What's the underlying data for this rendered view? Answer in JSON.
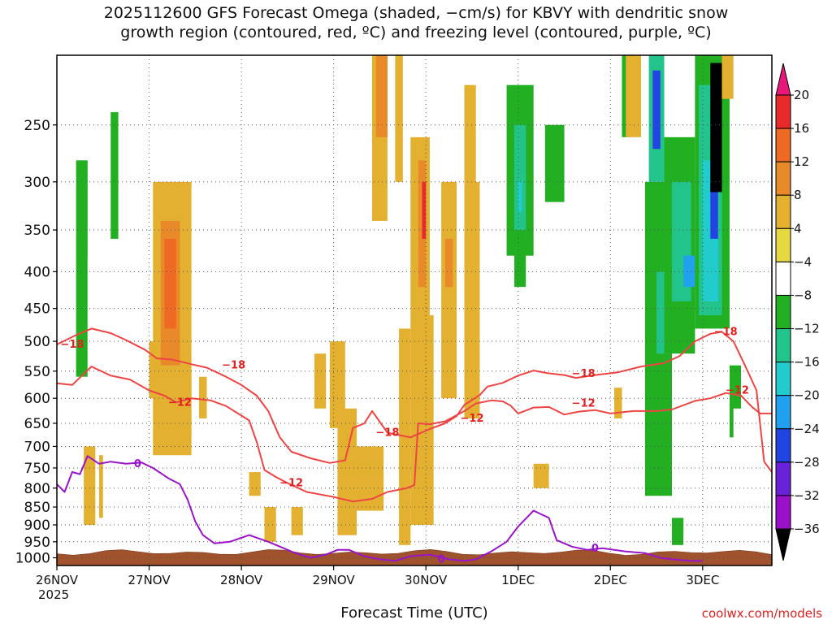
{
  "title": {
    "line1": "2025112600 GFS Forecast Omega (shaded, −cm/s) for KBVY with dendritic snow",
    "line2": "growth region (contoured, red, ºC) and freezing level (contoured, purple, ºC)"
  },
  "credit": "coolwx.com/models",
  "chart_data": {
    "type": "heatmap",
    "xlabel": "Forecast Time (UTC)",
    "x_ticks": [
      {
        "label": "26NOV",
        "sublabel": "2025",
        "hour": 0
      },
      {
        "label": "27NOV",
        "hour": 24
      },
      {
        "label": "28NOV",
        "hour": 48
      },
      {
        "label": "29NOV",
        "hour": 72
      },
      {
        "label": "30NOV",
        "hour": 96
      },
      {
        "label": "1DEC",
        "hour": 120
      },
      {
        "label": "2DEC",
        "hour": 144
      },
      {
        "label": "3DEC",
        "hour": 168
      }
    ],
    "xlim_hours": [
      0,
      186
    ],
    "y_ticks": [
      250,
      300,
      350,
      400,
      450,
      500,
      550,
      600,
      650,
      700,
      750,
      800,
      850,
      900,
      950,
      1000
    ],
    "ylim_hPa": [
      200,
      1025
    ],
    "y_scale": "log",
    "grid": true,
    "colorbar": {
      "labels": [
        "20",
        "16",
        "12",
        "8",
        "4",
        "−4",
        "−8",
        "−12",
        "−16",
        "−20",
        "−24",
        "−28",
        "−32",
        "−36"
      ],
      "bounds": [
        20,
        16,
        12,
        8,
        4,
        -4,
        -8,
        -12,
        -16,
        -20,
        -24,
        -28,
        -32,
        -36
      ],
      "colors": [
        "#e82a2a",
        "#ee6a22",
        "#e8892a",
        "#e3b030",
        "#e6d840",
        "#ffffff",
        "#22b022",
        "#22c48c",
        "#22cccc",
        "#22a0f0",
        "#2244e0",
        "#6a22d8",
        "#9a10c8",
        "#a8a8a8"
      ],
      "over_color": "#e8187a",
      "under_color": "#000000"
    },
    "omega_cells": [
      {
        "t0": 0,
        "t1": 2,
        "p0": 560,
        "p1": 760,
        "v": -7
      },
      {
        "t0": 2,
        "t1": 5,
        "p0": 300,
        "p1": 520,
        "v": -6
      },
      {
        "t0": 5,
        "t1": 8,
        "p0": 280,
        "p1": 560,
        "v": -9
      },
      {
        "t0": 8,
        "t1": 10,
        "p0": 380,
        "p1": 600,
        "v": -6
      },
      {
        "t0": 11,
        "t1": 14,
        "p0": 200,
        "p1": 480,
        "v": -7
      },
      {
        "t0": 14,
        "t1": 16,
        "p0": 240,
        "p1": 360,
        "v": -10
      },
      {
        "t0": 16,
        "t1": 18,
        "p0": 220,
        "p1": 360,
        "v": -6
      },
      {
        "t0": 19,
        "t1": 21,
        "p0": 240,
        "p1": 420,
        "v": -6
      },
      {
        "t0": 7,
        "t1": 10,
        "p0": 700,
        "p1": 900,
        "v": 5
      },
      {
        "t0": 11,
        "t1": 12,
        "p0": 720,
        "p1": 880,
        "v": 5
      },
      {
        "t0": 24,
        "t1": 27,
        "p0": 500,
        "p1": 600,
        "v": 5
      },
      {
        "t0": 25,
        "t1": 35,
        "p0": 300,
        "p1": 720,
        "v": 5
      },
      {
        "t0": 27,
        "t1": 32,
        "p0": 340,
        "p1": 540,
        "v": 10
      },
      {
        "t0": 28,
        "t1": 31,
        "p0": 360,
        "p1": 480,
        "v": 14
      },
      {
        "t0": 33,
        "t1": 35,
        "p0": 540,
        "p1": 680,
        "v": 5
      },
      {
        "t0": 37,
        "t1": 39,
        "p0": 560,
        "p1": 640,
        "v": 5
      },
      {
        "t0": 50,
        "t1": 53,
        "p0": 760,
        "p1": 820,
        "v": 5
      },
      {
        "t0": 54,
        "t1": 57,
        "p0": 850,
        "p1": 950,
        "v": 5
      },
      {
        "t0": 61,
        "t1": 64,
        "p0": 850,
        "p1": 930,
        "v": 5
      },
      {
        "t0": 67,
        "t1": 70,
        "p0": 520,
        "p1": 620,
        "v": 5
      },
      {
        "t0": 71,
        "t1": 75,
        "p0": 500,
        "p1": 660,
        "v": 5
      },
      {
        "t0": 72,
        "t1": 76,
        "p0": 240,
        "p1": 460,
        "v": -7
      },
      {
        "t0": 73,
        "t1": 78,
        "p0": 620,
        "p1": 930,
        "v": 5
      },
      {
        "t0": 78,
        "t1": 81,
        "p0": 420,
        "p1": 640,
        "v": -7
      },
      {
        "t0": 78,
        "t1": 85,
        "p0": 700,
        "p1": 860,
        "v": 5
      },
      {
        "t0": 82,
        "t1": 86,
        "p0": 200,
        "p1": 340,
        "v": 5
      },
      {
        "t0": 83,
        "t1": 86,
        "p0": 200,
        "p1": 260,
        "v": 10
      },
      {
        "t0": 88,
        "t1": 90,
        "p0": 200,
        "p1": 300,
        "v": 5
      },
      {
        "t0": 89,
        "t1": 92,
        "p0": 480,
        "p1": 960,
        "v": 5
      },
      {
        "t0": 92,
        "t1": 98,
        "p0": 260,
        "p1": 900,
        "v": 5
      },
      {
        "t0": 94,
        "t1": 96,
        "p0": 280,
        "p1": 420,
        "v": 12
      },
      {
        "t0": 95,
        "t1": 96,
        "p0": 300,
        "p1": 360,
        "v": 18
      },
      {
        "t0": 97,
        "t1": 99,
        "p0": 200,
        "p1": 460,
        "v": -7
      },
      {
        "t0": 100,
        "t1": 104,
        "p0": 300,
        "p1": 600,
        "v": 5
      },
      {
        "t0": 101,
        "t1": 103,
        "p0": 360,
        "p1": 420,
        "v": 10
      },
      {
        "t0": 104,
        "t1": 106,
        "p0": 240,
        "p1": 300,
        "v": -6
      },
      {
        "t0": 106,
        "t1": 110,
        "p0": 220,
        "p1": 640,
        "v": 5
      },
      {
        "t0": 109,
        "t1": 112,
        "p0": 200,
        "p1": 300,
        "v": -7
      },
      {
        "t0": 112,
        "t1": 116,
        "p0": 300,
        "p1": 560,
        "v": -6
      },
      {
        "t0": 117,
        "t1": 119,
        "p0": 500,
        "p1": 660,
        "v": -6
      },
      {
        "t0": 117,
        "t1": 124,
        "p0": 220,
        "p1": 380,
        "v": -8
      },
      {
        "t0": 119,
        "t1": 122,
        "p0": 250,
        "p1": 360,
        "v": -13
      },
      {
        "t0": 119,
        "t1": 122,
        "p0": 350,
        "p1": 420,
        "v": -8
      },
      {
        "t0": 120,
        "t1": 121,
        "p0": 300,
        "p1": 330,
        "v": -18
      },
      {
        "t0": 125,
        "t1": 128,
        "p0": 200,
        "p1": 320,
        "v": -7
      },
      {
        "t0": 127,
        "t1": 132,
        "p0": 250,
        "p1": 320,
        "v": -8
      },
      {
        "t0": 118,
        "t1": 121,
        "p0": 860,
        "p1": 960,
        "v": -6
      },
      {
        "t0": 111,
        "t1": 113,
        "p0": 820,
        "p1": 900,
        "v": -6
      },
      {
        "t0": 124,
        "t1": 128,
        "p0": 740,
        "p1": 800,
        "v": 5
      },
      {
        "t0": 132,
        "t1": 135,
        "p0": 200,
        "p1": 240,
        "v": -7
      },
      {
        "t0": 145,
        "t1": 147,
        "p0": 580,
        "p1": 640,
        "v": 5
      },
      {
        "t0": 147,
        "t1": 149,
        "p0": 200,
        "p1": 260,
        "v": -9
      },
      {
        "t0": 148,
        "t1": 152,
        "p0": 200,
        "p1": 260,
        "v": 5
      },
      {
        "t0": 152,
        "t1": 154,
        "p0": 200,
        "p1": 260,
        "v": -7
      },
      {
        "t0": 153,
        "t1": 160,
        "p0": 300,
        "p1": 820,
        "v": -8
      },
      {
        "t0": 154,
        "t1": 158,
        "p0": 200,
        "p1": 300,
        "v": -14
      },
      {
        "t0": 155,
        "t1": 157,
        "p0": 210,
        "p1": 270,
        "v": -26
      },
      {
        "t0": 156,
        "t1": 160,
        "p0": 400,
        "p1": 520,
        "v": -13
      },
      {
        "t0": 158,
        "t1": 166,
        "p0": 260,
        "p1": 520,
        "v": -10
      },
      {
        "t0": 160,
        "t1": 165,
        "p0": 300,
        "p1": 440,
        "v": -15
      },
      {
        "t0": 163,
        "t1": 166,
        "p0": 380,
        "p1": 420,
        "v": -22
      },
      {
        "t0": 166,
        "t1": 175,
        "p0": 200,
        "p1": 480,
        "v": -10
      },
      {
        "t0": 167,
        "t1": 173,
        "p0": 220,
        "p1": 460,
        "v": -14
      },
      {
        "t0": 168,
        "t1": 172,
        "p0": 280,
        "p1": 440,
        "v": -18
      },
      {
        "t0": 170,
        "t1": 172,
        "p0": 300,
        "p1": 360,
        "v": -26
      },
      {
        "t0": 170,
        "t1": 173,
        "p0": 205,
        "p1": 310,
        "v": -40
      },
      {
        "t0": 173,
        "t1": 176,
        "p0": 200,
        "p1": 230,
        "v": 6
      },
      {
        "t0": 175,
        "t1": 178,
        "p0": 540,
        "p1": 680,
        "v": -9
      },
      {
        "t0": 160,
        "t1": 163,
        "p0": 880,
        "p1": 960,
        "v": -9
      },
      {
        "t0": 163,
        "t1": 166,
        "p0": 920,
        "p1": 960,
        "v": -6
      },
      {
        "t0": 176,
        "t1": 181,
        "p0": 620,
        "p1": 760,
        "v": -7
      },
      {
        "t0": 178,
        "t1": 182,
        "p0": 500,
        "p1": 620,
        "v": -6
      }
    ],
    "contour_labels": [
      {
        "text": "−18",
        "t": 4,
        "p": 505,
        "color": "#e02020"
      },
      {
        "text": "−12",
        "t": 32,
        "p": 608,
        "color": "#e02020"
      },
      {
        "text": "−18",
        "t": 46,
        "p": 540,
        "color": "#e02020"
      },
      {
        "text": "−12",
        "t": 61,
        "p": 787,
        "color": "#e02020"
      },
      {
        "text": "−18",
        "t": 86,
        "p": 670,
        "color": "#e02020"
      },
      {
        "text": "−12",
        "t": 108,
        "p": 640,
        "color": "#e02020"
      },
      {
        "text": "−18",
        "t": 137,
        "p": 555,
        "color": "#e02020"
      },
      {
        "text": "−12",
        "t": 137,
        "p": 610,
        "color": "#e02020"
      },
      {
        "text": "−18",
        "t": 174,
        "p": 485,
        "color": "#e02020"
      },
      {
        "text": "−12",
        "t": 177,
        "p": 585,
        "color": "#e02020"
      },
      {
        "text": "0",
        "t": 21,
        "p": 740,
        "color": "#9a14c8"
      },
      {
        "text": "0",
        "t": 100,
        "p": 1005,
        "color": "#9a14c8"
      },
      {
        "text": "0",
        "t": 140,
        "p": 970,
        "color": "#9a14c8"
      }
    ],
    "contour_minus18": [
      [
        0,
        505
      ],
      [
        5,
        490
      ],
      [
        9,
        480
      ],
      [
        14,
        487
      ],
      [
        18,
        498
      ],
      [
        23,
        514
      ],
      [
        26,
        528
      ],
      [
        30,
        530
      ],
      [
        35,
        538
      ],
      [
        39,
        544
      ],
      [
        44,
        560
      ],
      [
        48,
        575
      ],
      [
        52,
        595
      ],
      [
        55,
        625
      ],
      [
        58,
        680
      ],
      [
        61,
        712
      ],
      [
        66,
        727
      ],
      [
        71,
        738
      ],
      [
        75,
        732
      ],
      [
        77,
        660
      ],
      [
        80,
        650
      ],
      [
        82,
        625
      ],
      [
        86,
        670
      ],
      [
        92,
        680
      ],
      [
        97,
        662
      ],
      [
        101,
        650
      ],
      [
        104,
        635
      ],
      [
        106,
        613
      ],
      [
        110,
        594
      ],
      [
        112,
        578
      ],
      [
        116,
        571
      ],
      [
        120,
        558
      ],
      [
        124,
        549
      ],
      [
        128,
        554
      ],
      [
        132,
        557
      ],
      [
        135,
        562
      ],
      [
        140,
        557
      ],
      [
        146,
        552
      ],
      [
        152,
        542
      ],
      [
        158,
        536
      ],
      [
        162,
        524
      ],
      [
        166,
        500
      ],
      [
        170,
        488
      ],
      [
        173,
        485
      ],
      [
        176,
        500
      ],
      [
        179,
        540
      ],
      [
        182,
        585
      ],
      [
        184,
        735
      ],
      [
        186,
        760
      ]
    ],
    "contour_minus12": [
      [
        0,
        572
      ],
      [
        4,
        575
      ],
      [
        9,
        542
      ],
      [
        14,
        558
      ],
      [
        19,
        565
      ],
      [
        24,
        585
      ],
      [
        28,
        595
      ],
      [
        31,
        608
      ],
      [
        35,
        600
      ],
      [
        40,
        604
      ],
      [
        44,
        615
      ],
      [
        50,
        644
      ],
      [
        52,
        690
      ],
      [
        54,
        755
      ],
      [
        57,
        772
      ],
      [
        60,
        787
      ],
      [
        65,
        810
      ],
      [
        72,
        823
      ],
      [
        77,
        835
      ],
      [
        82,
        828
      ],
      [
        86,
        810
      ],
      [
        91,
        800
      ],
      [
        93,
        792
      ],
      [
        94,
        650
      ],
      [
        97,
        652
      ],
      [
        101,
        646
      ],
      [
        106,
        625
      ],
      [
        109,
        610
      ],
      [
        113,
        604
      ],
      [
        116,
        606
      ],
      [
        118,
        614
      ],
      [
        120,
        630
      ],
      [
        124,
        618
      ],
      [
        128,
        617
      ],
      [
        132,
        632
      ],
      [
        136,
        626
      ],
      [
        140,
        623
      ],
      [
        144,
        630
      ],
      [
        150,
        625
      ],
      [
        156,
        625
      ],
      [
        160,
        622
      ],
      [
        166,
        605
      ],
      [
        170,
        600
      ],
      [
        174,
        590
      ],
      [
        178,
        595
      ],
      [
        181,
        618
      ],
      [
        183,
        630
      ],
      [
        186,
        630
      ]
    ],
    "contour_zero": [
      [
        0,
        790
      ],
      [
        2,
        810
      ],
      [
        4,
        760
      ],
      [
        6,
        765
      ],
      [
        8,
        722
      ],
      [
        11,
        740
      ],
      [
        14,
        735
      ],
      [
        18,
        740
      ],
      [
        22,
        737
      ],
      [
        25,
        750
      ],
      [
        29,
        775
      ],
      [
        32,
        790
      ],
      [
        34,
        830
      ],
      [
        36,
        890
      ],
      [
        38,
        930
      ],
      [
        41,
        955
      ],
      [
        45,
        950
      ],
      [
        50,
        930
      ],
      [
        55,
        950
      ],
      [
        62,
        985
      ],
      [
        66,
        1000
      ],
      [
        70,
        990
      ],
      [
        73,
        975
      ],
      [
        76,
        975
      ],
      [
        80,
        995
      ],
      [
        84,
        1005
      ],
      [
        88,
        1010
      ],
      [
        92,
        995
      ],
      [
        97,
        990
      ],
      [
        102,
        1005
      ],
      [
        106,
        1010
      ],
      [
        109,
        1005
      ],
      [
        113,
        980
      ],
      [
        117,
        950
      ],
      [
        120,
        905
      ],
      [
        124,
        860
      ],
      [
        128,
        880
      ],
      [
        130,
        945
      ],
      [
        134,
        965
      ],
      [
        138,
        975
      ],
      [
        142,
        970
      ],
      [
        148,
        980
      ],
      [
        153,
        985
      ],
      [
        157,
        1000
      ],
      [
        160,
        1005
      ],
      [
        165,
        1010
      ],
      [
        168,
        1010
      ]
    ]
  }
}
